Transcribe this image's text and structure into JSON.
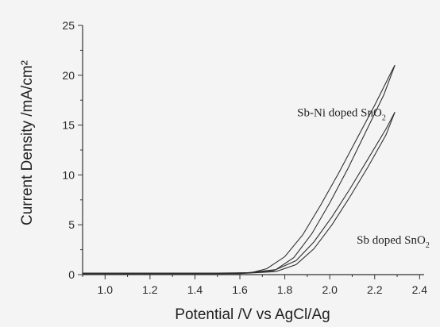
{
  "chart_data": {
    "type": "line",
    "xlabel": "Potential /V vs  AgCl/Ag",
    "ylabel": "Current Density /mA/cm²",
    "xlim": [
      0.9,
      2.42
    ],
    "ylim": [
      0,
      25
    ],
    "xticks": [
      1.0,
      1.2,
      1.4,
      1.6,
      1.8,
      2.0,
      2.2,
      2.4
    ],
    "yticks": [
      0,
      5,
      10,
      15,
      20,
      25
    ],
    "series": [
      {
        "name": "Sb-Ni doped SnO₂",
        "label_text": "Sb-Ni doped SnO",
        "label_sub": "2",
        "forward": [
          [
            0.9,
            0.1
          ],
          [
            1.2,
            0.1
          ],
          [
            1.5,
            0.1
          ],
          [
            1.65,
            0.2
          ],
          [
            1.72,
            0.6
          ],
          [
            1.8,
            1.8
          ],
          [
            1.88,
            4.0
          ],
          [
            1.96,
            7.0
          ],
          [
            2.04,
            10.2
          ],
          [
            2.12,
            13.6
          ],
          [
            2.2,
            17.0
          ],
          [
            2.28,
            20.6
          ],
          [
            2.29,
            21.0
          ]
        ],
        "reverse": [
          [
            2.29,
            21.0
          ],
          [
            2.24,
            18.0
          ],
          [
            2.16,
            14.3
          ],
          [
            2.08,
            10.6
          ],
          [
            2.0,
            7.2
          ],
          [
            1.92,
            4.1
          ],
          [
            1.84,
            1.7
          ],
          [
            1.76,
            0.5
          ],
          [
            1.6,
            0.1
          ],
          [
            1.2,
            0.05
          ],
          [
            0.9,
            0.05
          ]
        ]
      },
      {
        "name": "Sb doped SnO₂",
        "label_text": "Sb doped SnO",
        "label_sub": "2",
        "forward": [
          [
            0.9,
            0.15
          ],
          [
            1.2,
            0.15
          ],
          [
            1.5,
            0.15
          ],
          [
            1.65,
            0.2
          ],
          [
            1.75,
            0.4
          ],
          [
            1.85,
            1.4
          ],
          [
            1.93,
            3.3
          ],
          [
            2.01,
            5.8
          ],
          [
            2.09,
            8.6
          ],
          [
            2.17,
            11.6
          ],
          [
            2.25,
            14.6
          ],
          [
            2.29,
            16.3
          ]
        ],
        "reverse": [
          [
            2.29,
            16.3
          ],
          [
            2.25,
            14.0
          ],
          [
            2.17,
            10.8
          ],
          [
            2.09,
            7.8
          ],
          [
            2.01,
            5.0
          ],
          [
            1.93,
            2.6
          ],
          [
            1.85,
            1.0
          ],
          [
            1.76,
            0.3
          ],
          [
            1.6,
            0.1
          ],
          [
            1.2,
            0.1
          ],
          [
            0.9,
            0.1
          ]
        ]
      }
    ],
    "annotations": [
      {
        "series": 0,
        "x": 1.855,
        "y": 15.9
      },
      {
        "series": 1,
        "x": 2.12,
        "y": 3.1
      }
    ]
  }
}
